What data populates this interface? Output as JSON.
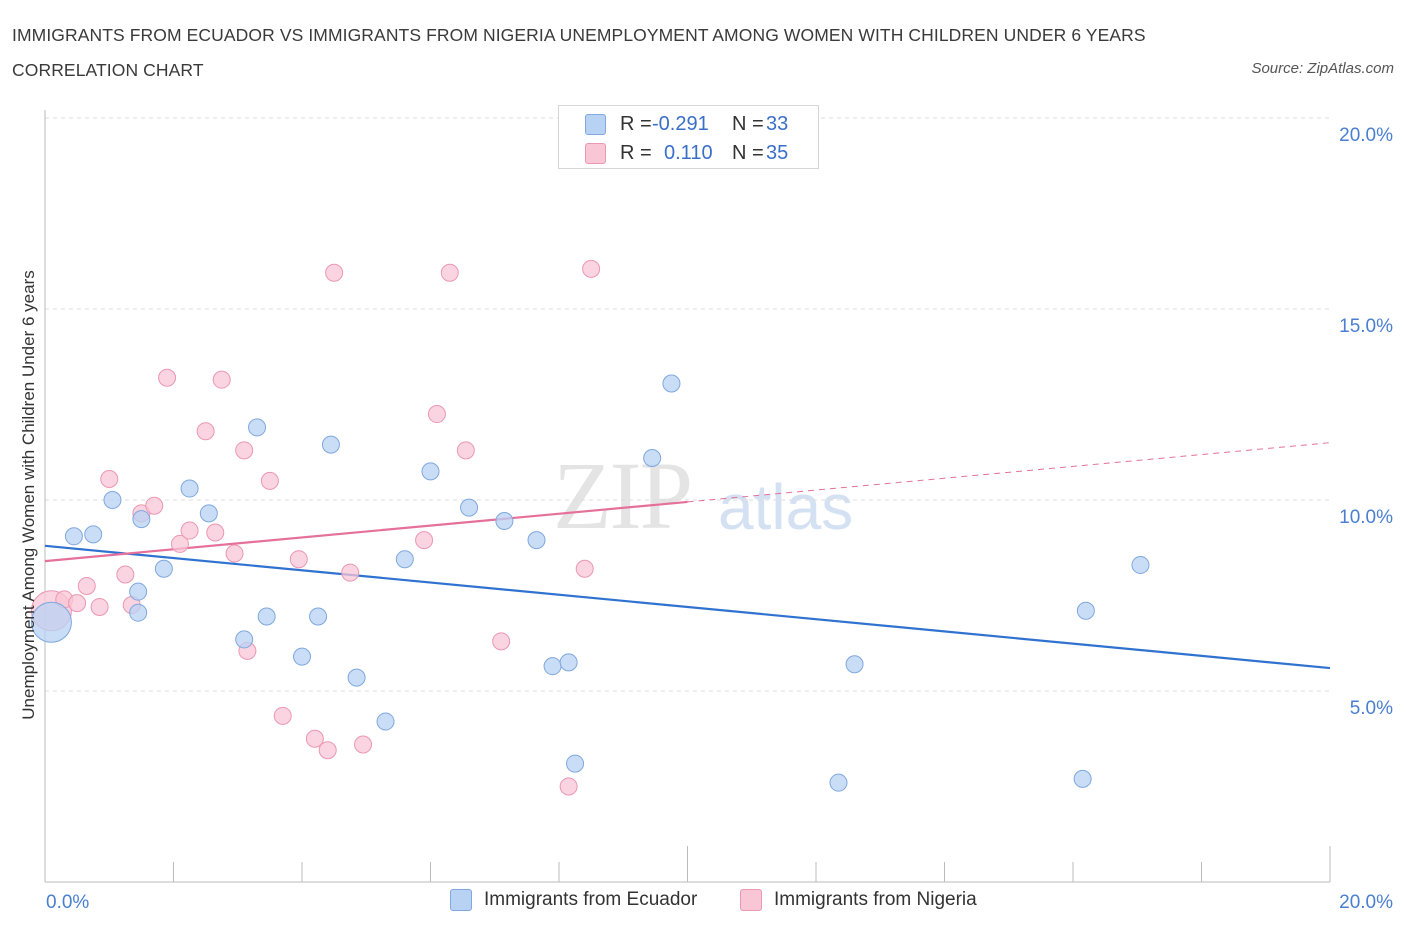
{
  "title": "IMMIGRANTS FROM ECUADOR VS IMMIGRANTS FROM NIGERIA UNEMPLOYMENT AMONG WOMEN WITH CHILDREN UNDER 6 YEARS CORRELATION CHART",
  "source": "Source: ZipAtlas.com",
  "watermark": {
    "zip": "ZIP",
    "atlas": "atlas"
  },
  "legend": {
    "r_label": "R =",
    "n_label": "N =",
    "ecuador": {
      "r": "-0.291",
      "n": "33"
    },
    "nigeria": {
      "r": "0.110",
      "n": "35"
    }
  },
  "bottom_legend": {
    "ecuador": "Immigrants from Ecuador",
    "nigeria": "Immigrants from Nigeria"
  },
  "colors": {
    "ecuador_fill": "#b8d2f4",
    "ecuador_stroke": "#7fa8de",
    "ecuador_line": "#2f72cf",
    "nigeria_fill": "#f8c6d5",
    "nigeria_stroke": "#eb98b1",
    "nigeria_line": "#e5709a",
    "grid": "#dcdcdc",
    "tick": "#4a7fd0"
  },
  "chart_data": {
    "type": "scatter",
    "xlabel": "",
    "ylabel": "Unemployment Among Women with Children Under 6 years",
    "xlim": [
      0,
      20
    ],
    "ylim": [
      0,
      20
    ],
    "x_tick_labels": [
      "0.0%",
      "20.0%"
    ],
    "y_tick_labels": [
      "5.0%",
      "10.0%",
      "15.0%",
      "20.0%"
    ],
    "y_ticks": [
      5,
      10,
      15,
      20
    ],
    "grid": true,
    "legend_position": "top-center",
    "series": [
      {
        "name": "Immigrants from Ecuador",
        "trend": {
          "x": [
            0,
            20
          ],
          "y": [
            8.8,
            5.6
          ],
          "solid_to": 20
        },
        "points": [
          {
            "x": 0.1,
            "y": 6.8,
            "big": true
          },
          {
            "x": 0.45,
            "y": 9.05
          },
          {
            "x": 0.75,
            "y": 9.1
          },
          {
            "x": 1.05,
            "y": 10.0
          },
          {
            "x": 1.45,
            "y": 7.6
          },
          {
            "x": 1.5,
            "y": 9.5
          },
          {
            "x": 2.25,
            "y": 10.3
          },
          {
            "x": 2.55,
            "y": 9.65
          },
          {
            "x": 1.85,
            "y": 8.2
          },
          {
            "x": 1.45,
            "y": 7.05
          },
          {
            "x": 3.3,
            "y": 11.9
          },
          {
            "x": 4.45,
            "y": 11.45
          },
          {
            "x": 6.0,
            "y": 10.75
          },
          {
            "x": 6.6,
            "y": 9.8
          },
          {
            "x": 7.15,
            "y": 9.45
          },
          {
            "x": 7.65,
            "y": 8.95
          },
          {
            "x": 5.6,
            "y": 8.45
          },
          {
            "x": 3.45,
            "y": 6.95
          },
          {
            "x": 4.25,
            "y": 6.95
          },
          {
            "x": 3.1,
            "y": 6.35
          },
          {
            "x": 4.0,
            "y": 5.9
          },
          {
            "x": 4.85,
            "y": 5.35
          },
          {
            "x": 5.3,
            "y": 4.2
          },
          {
            "x": 7.9,
            "y": 5.65
          },
          {
            "x": 8.15,
            "y": 5.75
          },
          {
            "x": 8.25,
            "y": 3.1
          },
          {
            "x": 9.75,
            "y": 13.05
          },
          {
            "x": 9.45,
            "y": 11.1
          },
          {
            "x": 12.6,
            "y": 5.7
          },
          {
            "x": 12.35,
            "y": 2.6
          },
          {
            "x": 16.2,
            "y": 7.1
          },
          {
            "x": 17.05,
            "y": 8.3
          },
          {
            "x": 16.15,
            "y": 2.7
          }
        ]
      },
      {
        "name": "Immigrants from Nigeria",
        "trend": {
          "x": [
            0,
            20
          ],
          "y": [
            8.4,
            11.5
          ],
          "solid_to": 10
        },
        "points": [
          {
            "x": 0.1,
            "y": 7.1,
            "big": true
          },
          {
            "x": 0.3,
            "y": 7.4
          },
          {
            "x": 0.5,
            "y": 7.3
          },
          {
            "x": 0.65,
            "y": 7.75
          },
          {
            "x": 0.85,
            "y": 7.2
          },
          {
            "x": 1.0,
            "y": 10.55
          },
          {
            "x": 1.25,
            "y": 8.05
          },
          {
            "x": 1.35,
            "y": 7.25
          },
          {
            "x": 1.5,
            "y": 9.65
          },
          {
            "x": 1.7,
            "y": 9.85
          },
          {
            "x": 1.9,
            "y": 13.2
          },
          {
            "x": 2.1,
            "y": 8.85
          },
          {
            "x": 2.25,
            "y": 9.2
          },
          {
            "x": 2.5,
            "y": 11.8
          },
          {
            "x": 2.65,
            "y": 9.15
          },
          {
            "x": 2.75,
            "y": 13.15
          },
          {
            "x": 2.95,
            "y": 8.6
          },
          {
            "x": 3.1,
            "y": 11.3
          },
          {
            "x": 3.5,
            "y": 10.5
          },
          {
            "x": 3.95,
            "y": 8.45
          },
          {
            "x": 4.5,
            "y": 15.95
          },
          {
            "x": 4.75,
            "y": 8.1
          },
          {
            "x": 5.9,
            "y": 8.95
          },
          {
            "x": 6.1,
            "y": 12.25
          },
          {
            "x": 6.3,
            "y": 15.95
          },
          {
            "x": 6.55,
            "y": 11.3
          },
          {
            "x": 7.1,
            "y": 6.3
          },
          {
            "x": 8.5,
            "y": 16.05
          },
          {
            "x": 8.4,
            "y": 8.2
          },
          {
            "x": 3.15,
            "y": 6.05
          },
          {
            "x": 3.7,
            "y": 4.35
          },
          {
            "x": 4.2,
            "y": 3.75
          },
          {
            "x": 4.4,
            "y": 3.45
          },
          {
            "x": 4.95,
            "y": 3.6
          },
          {
            "x": 8.15,
            "y": 2.5
          }
        ]
      }
    ]
  }
}
